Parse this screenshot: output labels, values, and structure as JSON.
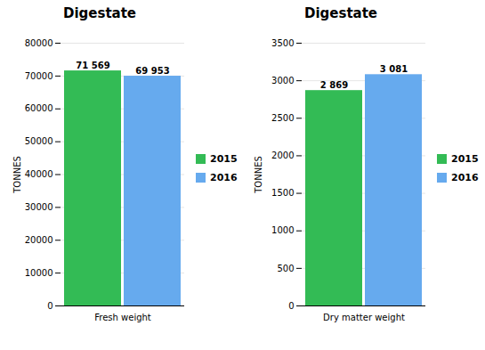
{
  "chart_data": [
    {
      "type": "bar",
      "title": "Digestate",
      "ylabel": "TONNES",
      "categories": [
        "Fresh weight"
      ],
      "series": [
        {
          "name": "2015",
          "color": "#33bb55",
          "values": [
            71569
          ],
          "value_labels": [
            "71 569"
          ]
        },
        {
          "name": "2016",
          "color": "#66aaee",
          "values": [
            69953
          ],
          "value_labels": [
            "69 953"
          ]
        }
      ],
      "ylim": [
        0,
        80000
      ],
      "yticks": [
        0,
        10000,
        20000,
        30000,
        40000,
        50000,
        60000,
        70000,
        80000
      ],
      "grid": true,
      "legend": "right",
      "data_labels": true
    },
    {
      "type": "bar",
      "title": "Digestate",
      "ylabel": "TONNES",
      "categories": [
        "Dry matter weight"
      ],
      "series": [
        {
          "name": "2015",
          "color": "#33bb55",
          "values": [
            2869
          ],
          "value_labels": [
            "2 869"
          ]
        },
        {
          "name": "2016",
          "color": "#66aaee",
          "values": [
            3081
          ],
          "value_labels": [
            "3 081"
          ]
        }
      ],
      "ylim": [
        0,
        3500
      ],
      "yticks": [
        0,
        500,
        1000,
        1500,
        2000,
        2500,
        3000,
        3500
      ],
      "grid": true,
      "legend": "right",
      "data_labels": true
    }
  ]
}
